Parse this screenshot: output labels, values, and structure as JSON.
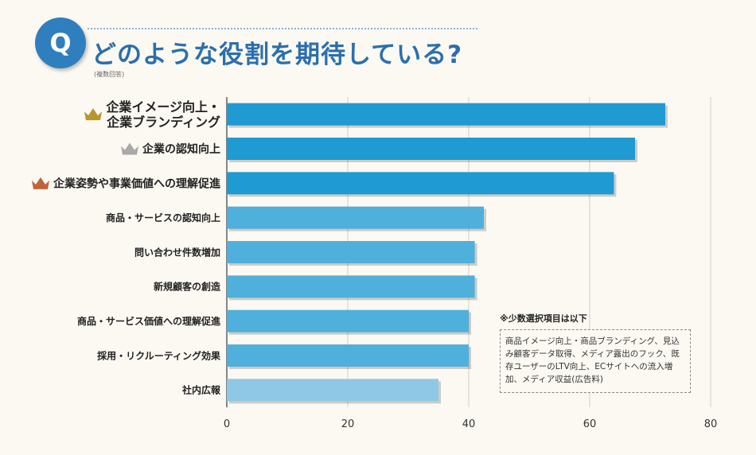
{
  "header": {
    "badge": "Q",
    "title": "どのような役割を期待している?",
    "note": "(複数回答)"
  },
  "colors": {
    "title": "#2b6fad",
    "badge": "#2f7fbf",
    "bar_primary": "#1f9ad3",
    "bar_secondary": "#4fb0db",
    "bar_tertiary": "#8ec8e6",
    "crown_gold": "#b8962e",
    "crown_silver": "#a9a9a9",
    "crown_bronze": "#c0643c"
  },
  "chart_data": {
    "type": "bar",
    "orientation": "horizontal",
    "categories": [
      [
        "企業イメージ向上・",
        "企業ブランディング"
      ],
      [
        "企業の認知向上"
      ],
      [
        "企業姿勢や事業価値への理解促進"
      ],
      [
        "商品・サービスの認知向上"
      ],
      [
        "問い合わせ件数増加"
      ],
      [
        "新規顧客の創造"
      ],
      [
        "商品・サービス価値への理解促進"
      ],
      [
        "採用・リクルーティング効果"
      ],
      [
        "社内広報"
      ]
    ],
    "values": [
      72.5,
      67.5,
      64,
      42.5,
      41,
      41,
      40,
      40,
      35
    ],
    "ranks": [
      1,
      2,
      3,
      null,
      null,
      null,
      null,
      null,
      null
    ],
    "xlim": [
      0,
      80
    ],
    "xticks": [
      "0",
      "20",
      "40",
      "60",
      "80"
    ],
    "grid": true,
    "title": "",
    "xlabel": "",
    "ylabel": ""
  },
  "note": {
    "title": "※少数選択項目は以下",
    "body": "商品イメージ向上・商品ブランディング、見込み顧客データ取得、メディア露出のフック、既存ユーザーのLTV向上、ECサイトへの流入増加、メディア収益(広告料)"
  }
}
